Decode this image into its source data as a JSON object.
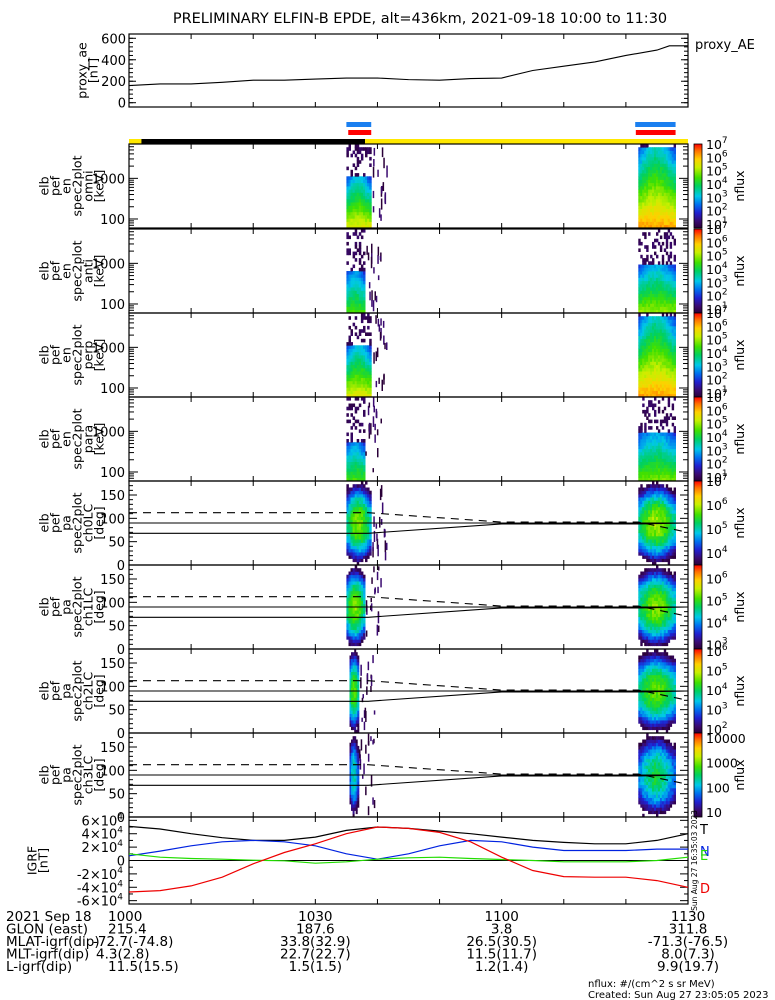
{
  "title": "PRELIMINARY ELFIN-B EPDE, alt=436km, 2021-09-18 10:00 to 11:30",
  "colors": {
    "blue_bar": "#1a7ff0",
    "red_bar": "#ff0000",
    "yellow_bar": "#ffe800",
    "black_bar": "#000000",
    "igrf_T": "#000000",
    "igrf_N": "#0022e0",
    "igrf_E": "#22dd00",
    "igrf_D": "#ee0000"
  },
  "chart_data": [
    {
      "type": "line",
      "name": "proxy_ae",
      "ylabel": "proxy_ae [nT]",
      "legend": "proxy_AE",
      "ylim": [
        -40,
        640
      ],
      "yticks": [
        "0",
        "200",
        "400",
        "600"
      ],
      "ytick_values": [
        0,
        200,
        400,
        600
      ],
      "x_minutes": [
        0,
        5,
        10,
        15,
        20,
        25,
        30,
        35,
        40,
        45,
        50,
        55,
        60,
        65,
        70,
        75,
        80,
        85,
        87,
        90
      ],
      "values": [
        160,
        175,
        175,
        190,
        210,
        210,
        220,
        230,
        230,
        215,
        210,
        225,
        230,
        300,
        340,
        380,
        440,
        490,
        530,
        530
      ]
    },
    {
      "type": "table",
      "name": "science-zone-bars",
      "blue_segments_minutes": [
        [
          35,
          39
        ],
        [
          81.5,
          88
        ]
      ],
      "red_segments_minutes": [
        [
          35.3,
          39
        ],
        [
          81.6,
          88
        ]
      ],
      "status_bar": [
        {
          "from": 0,
          "to": 2,
          "color": "yellow"
        },
        {
          "from": 2,
          "to": 38,
          "color": "black"
        },
        {
          "from": 38,
          "to": 90,
          "color": "yellow"
        }
      ]
    },
    {
      "type": "heatmap",
      "name": "spec-omni",
      "ylabel": [
        "elb",
        "pef",
        "en",
        "spec2plot",
        "omni",
        "[keV]"
      ],
      "yticks": [
        "100",
        "1000"
      ],
      "ylog": true,
      "ylim_keV": [
        60,
        7000
      ],
      "colorbar": {
        "label": "nflux",
        "ticks": [
          "10^1",
          "10^2",
          "10^3",
          "10^4",
          "10^5",
          "10^6",
          "10^7"
        ],
        "log_range": [
          0.7,
          7
        ]
      },
      "bursts": [
        {
          "start_min": 35,
          "end_min": 39,
          "peak_log": 5.5,
          "max_keV": 1100
        },
        {
          "start_min": 82,
          "end_min": 88,
          "peak_log": 6.2,
          "max_keV": 6000
        }
      ]
    },
    {
      "type": "heatmap",
      "name": "spec-anti",
      "ylabel": [
        "elb",
        "pef",
        "en",
        "spec2plot",
        "anti",
        "[keV]"
      ],
      "yticks": [
        "100",
        "1000"
      ],
      "ylog": true,
      "ylim_keV": [
        60,
        7000
      ],
      "colorbar": {
        "label": "nflux",
        "ticks": [
          "10^1",
          "10^2",
          "10^3",
          "10^4",
          "10^5",
          "10^6",
          "10^7"
        ],
        "log_range": [
          0.7,
          7
        ]
      },
      "bursts": [
        {
          "start_min": 35,
          "end_min": 38,
          "peak_log": 4.5,
          "max_keV": 600
        },
        {
          "start_min": 82,
          "end_min": 88,
          "peak_log": 5.0,
          "max_keV": 900
        }
      ]
    },
    {
      "type": "heatmap",
      "name": "spec-perp",
      "ylabel": [
        "elb",
        "pef",
        "en",
        "spec2plot",
        "perp",
        "[keV]"
      ],
      "yticks": [
        "100",
        "1000"
      ],
      "ylog": true,
      "ylim_keV": [
        60,
        7000
      ],
      "colorbar": {
        "label": "nflux",
        "ticks": [
          "10^1",
          "10^2",
          "10^3",
          "10^4",
          "10^5",
          "10^6",
          "10^7"
        ],
        "log_range": [
          0.7,
          7
        ]
      },
      "bursts": [
        {
          "start_min": 35,
          "end_min": 39,
          "peak_log": 5.5,
          "max_keV": 1100
        },
        {
          "start_min": 82,
          "end_min": 88,
          "peak_log": 6.2,
          "max_keV": 6000
        }
      ]
    },
    {
      "type": "heatmap",
      "name": "spec-para",
      "ylabel": [
        "elb",
        "pef",
        "en",
        "spec2plot",
        "para",
        "[keV]"
      ],
      "yticks": [
        "100",
        "1000"
      ],
      "ylog": true,
      "ylim_keV": [
        60,
        7000
      ],
      "colorbar": {
        "label": "nflux",
        "ticks": [
          "10^1",
          "10^2",
          "10^3",
          "10^4",
          "10^5",
          "10^6",
          "10^7"
        ],
        "log_range": [
          0.7,
          7
        ]
      },
      "bursts": [
        {
          "start_min": 35,
          "end_min": 38,
          "peak_log": 4.5,
          "max_keV": 500
        },
        {
          "start_min": 82,
          "end_min": 88,
          "peak_log": 4.8,
          "max_keV": 900
        }
      ]
    },
    {
      "type": "heatmap",
      "name": "pa-ch0",
      "ylabel": [
        "elb",
        "pef",
        "pa",
        "spec2plot",
        "ch0LC",
        "[deg]"
      ],
      "yticks": [
        "0",
        "50",
        "100",
        "150"
      ],
      "ylim_deg": [
        0,
        180
      ],
      "colorbar": {
        "label": "nflux",
        "ticks": [
          "10^4",
          "10^5",
          "10^6",
          "10^7"
        ],
        "log_range": [
          3.5,
          7
        ]
      },
      "bursts": [
        {
          "start_min": 35,
          "end_min": 39,
          "peak_log": 5.8
        },
        {
          "start_min": 82,
          "end_min": 88,
          "peak_log": 5.9
        }
      ]
    },
    {
      "type": "heatmap",
      "name": "pa-ch1",
      "ylabel": [
        "elb",
        "pef",
        "pa",
        "spec2plot",
        "ch1LC",
        "[deg]"
      ],
      "yticks": [
        "0",
        "50",
        "100",
        "150"
      ],
      "ylim_deg": [
        0,
        180
      ],
      "colorbar": {
        "label": "nflux",
        "ticks": [
          "10^3",
          "10^4",
          "10^5",
          "10^6"
        ],
        "log_range": [
          2.8,
          6.6
        ]
      },
      "bursts": [
        {
          "start_min": 35,
          "end_min": 38,
          "peak_log": 5.3
        },
        {
          "start_min": 82,
          "end_min": 88,
          "peak_log": 5.3
        }
      ]
    },
    {
      "type": "heatmap",
      "name": "pa-ch2",
      "ylabel": [
        "elb",
        "pef",
        "pa",
        "spec2plot",
        "ch2LC",
        "[deg]"
      ],
      "yticks": [
        "0",
        "50",
        "100",
        "150"
      ],
      "ylim_deg": [
        0,
        180
      ],
      "colorbar": {
        "label": "nflux",
        "ticks": [
          "10^2",
          "10^3",
          "10^4",
          "10^5",
          "10^6"
        ],
        "log_range": [
          1.8,
          6.1
        ]
      },
      "bursts": [
        {
          "start_min": 35.5,
          "end_min": 37,
          "peak_log": 4.5
        },
        {
          "start_min": 82,
          "end_min": 88,
          "peak_log": 4.5
        }
      ]
    },
    {
      "type": "heatmap",
      "name": "pa-ch3",
      "ylabel": [
        "elb",
        "pef",
        "pa",
        "spec2plot",
        "ch3LC",
        "[deg]"
      ],
      "yticks": [
        "0",
        "50",
        "100",
        "150"
      ],
      "ylim_deg": [
        0,
        180
      ],
      "colorbar": {
        "label": "nflux",
        "ticks": [
          "10",
          "100",
          "1000",
          "10000"
        ],
        "log_range": [
          0.8,
          4.2
        ]
      },
      "bursts": [
        {
          "start_min": 35.5,
          "end_min": 37,
          "peak_log": 2.3
        },
        {
          "start_min": 82,
          "end_min": 88,
          "peak_log": 2.6
        }
      ]
    },
    {
      "type": "line",
      "name": "igrf",
      "ylabel": [
        "IGRF",
        "[nT]"
      ],
      "ylim": [
        -65000,
        65000
      ],
      "yticks": [
        "-6×10^4",
        "-4×10^4",
        "-2×10^4",
        "0",
        "2×10^4",
        "4×10^4",
        "6×10^4"
      ],
      "ytick_values": [
        -60000,
        -40000,
        -20000,
        0,
        20000,
        40000,
        60000
      ],
      "legend": [
        "T",
        "N",
        "E",
        "D"
      ],
      "x_minutes": [
        0,
        5,
        10,
        15,
        20,
        25,
        30,
        35,
        40,
        45,
        50,
        55,
        60,
        65,
        70,
        75,
        80,
        85,
        90
      ],
      "series": [
        {
          "name": "T",
          "values": [
            51000,
            47000,
            40000,
            34000,
            30000,
            30000,
            35000,
            45000,
            50000,
            48000,
            44000,
            40000,
            35000,
            30000,
            27000,
            25000,
            25000,
            30000,
            40000
          ]
        },
        {
          "name": "N",
          "values": [
            7000,
            14000,
            22000,
            28000,
            30000,
            28000,
            22000,
            10000,
            2000,
            10000,
            22000,
            30000,
            28000,
            20000,
            15000,
            15000,
            15000,
            17000,
            17000
          ]
        },
        {
          "name": "E",
          "values": [
            10000,
            5000,
            3000,
            2000,
            500,
            -500,
            -4000,
            -2000,
            2000,
            4000,
            5000,
            3000,
            1500,
            0,
            -2000,
            -2000,
            -2000,
            0,
            5000
          ]
        },
        {
          "name": "D",
          "values": [
            -47000,
            -45000,
            -38000,
            -25000,
            -5000,
            12000,
            25000,
            40000,
            50000,
            48000,
            42000,
            28000,
            5000,
            -15000,
            -24000,
            -25000,
            -25000,
            -30000,
            -40000
          ]
        }
      ]
    }
  ],
  "xaxis": {
    "tick_minutes": [
      0,
      30,
      60,
      90
    ],
    "minor_every_minutes": 10,
    "rows": [
      {
        "label": "2021 Sep 18",
        "values": [
          "1000",
          "1030",
          "1100",
          "1130"
        ]
      },
      {
        "label": "GLON (east)",
        "values": [
          "215.4",
          "187.6",
          "3.8",
          "311.8"
        ]
      },
      {
        "label": "MLAT-igrf(dip)",
        "values": [
          "-72.7(-74.8)",
          "33.8(32.9)",
          "26.5(30.5)",
          "-71.3(-76.5)"
        ]
      },
      {
        "label": "MLT-igrf(dip)",
        "values": [
          "4.3(2.8)",
          "22.7(22.7)",
          "11.5(11.7)",
          "8.0(7.3)"
        ]
      },
      {
        "label": "L-igrf(dip)",
        "values": [
          "11.5(15.5)",
          "1.5(1.5)",
          "1.2(1.4)",
          "9.9(19.7)"
        ]
      }
    ]
  },
  "side_stamp": "Sun Aug 27 16:35:03 2023",
  "footer": {
    "units": "nflux: #/(cm^2 s sr MeV)",
    "created": "Created: Sun Aug 27 23:05:05 2023"
  }
}
